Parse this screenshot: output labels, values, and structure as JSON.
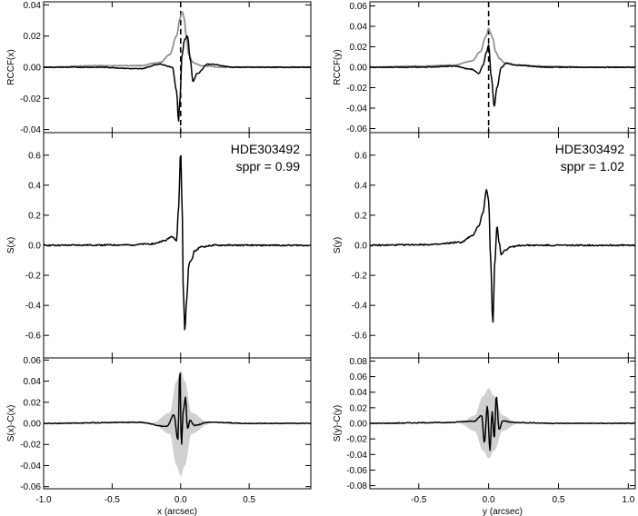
{
  "chart_data": [
    {
      "type": "line",
      "panel": "left-top",
      "ylabel": "RCCF(x)",
      "xlim": [
        -1.0,
        0.95
      ],
      "ylim": [
        -0.042,
        0.042
      ],
      "yticks": [
        0.04,
        0.02,
        0.0,
        -0.02,
        -0.04
      ],
      "ytick_labels": [
        "0.04",
        "0.02",
        "0.00",
        "-0.02",
        "-0.04"
      ],
      "xticks": [
        -1.0,
        -0.5,
        0.0,
        0.5
      ],
      "vline_dashed_x": 0.0,
      "series": [
        {
          "color": "#8c8c8c",
          "x": [
            -1.0,
            -0.6,
            -0.3,
            -0.15,
            -0.08,
            -0.03,
            -0.005,
            0.01,
            0.025,
            0.04,
            0.06,
            0.09,
            0.15,
            0.3,
            0.6,
            0.95
          ],
          "y": [
            0.0,
            0.001,
            0.001,
            0.003,
            0.008,
            0.02,
            0.031,
            0.036,
            0.032,
            0.02,
            0.008,
            0.003,
            0.001,
            0.0,
            0.0,
            0.0
          ]
        },
        {
          "color": "#000000",
          "x": [
            -1.0,
            -0.6,
            -0.3,
            -0.15,
            -0.06,
            -0.03,
            -0.015,
            -0.005,
            0.01,
            0.03,
            0.05,
            0.07,
            0.09,
            0.12,
            0.2,
            0.4,
            0.7,
            0.95
          ],
          "y": [
            0.0,
            0.0,
            -0.001,
            0.002,
            0.0,
            -0.015,
            -0.035,
            -0.02,
            0.008,
            0.018,
            0.02,
            0.005,
            -0.009,
            -0.004,
            0.002,
            0.0,
            0.0,
            0.0
          ]
        }
      ]
    },
    {
      "type": "line",
      "panel": "left-middle",
      "ylabel": "S(x)",
      "xlim": [
        -1.0,
        0.95
      ],
      "ylim": [
        -0.75,
        0.75
      ],
      "yticks": [
        0.6,
        0.4,
        0.2,
        0.0,
        -0.2,
        -0.4,
        -0.6
      ],
      "ytick_labels": [
        "0.6",
        "0.4",
        "0.2",
        "0.0",
        "-0.2",
        "-0.4",
        "-0.6"
      ],
      "xticks": [
        -1.0,
        -0.5,
        0.0,
        0.5
      ],
      "annotation": {
        "name": "HDE303492",
        "sppr": "sppr = 0.99"
      },
      "series": [
        {
          "color": "#000000",
          "x": [
            -1.0,
            -0.4,
            -0.2,
            -0.12,
            -0.06,
            -0.03,
            -0.015,
            0.0,
            0.01,
            0.02,
            0.03,
            0.045,
            0.06,
            0.08,
            0.1,
            0.15,
            0.25,
            0.5,
            0.95
          ],
          "y": [
            0.0,
            0.002,
            0.01,
            0.03,
            0.06,
            0.03,
            0.25,
            0.63,
            0.3,
            -0.3,
            -0.57,
            -0.35,
            -0.12,
            -0.1,
            -0.04,
            -0.01,
            0.0,
            0.0,
            0.0
          ]
        }
      ]
    },
    {
      "type": "line",
      "panel": "left-bottom",
      "ylabel": "S(x)-C(x)",
      "xlabel": "x (arcsec)",
      "xlim": [
        -1.0,
        0.95
      ],
      "ylim": [
        -0.062,
        0.062
      ],
      "yticks": [
        0.06,
        0.04,
        0.02,
        0.0,
        -0.02,
        -0.04,
        -0.06
      ],
      "ytick_labels": [
        "0.06",
        "0.04",
        "0.02",
        "0.00",
        "-0.02",
        "-0.04",
        "-0.06"
      ],
      "xticks": [
        -1.0,
        -0.5,
        0.0,
        0.5
      ],
      "xtick_labels": [
        "-1.0",
        "-0.5",
        "0.0",
        "0.5"
      ],
      "band_color": "#d0d0d0",
      "band": {
        "x": [
          -0.2,
          -0.08,
          -0.03,
          0.0,
          0.03,
          0.08,
          0.2
        ],
        "half_width": [
          0.001,
          0.01,
          0.04,
          0.05,
          0.04,
          0.01,
          0.001
        ]
      },
      "series": [
        {
          "color": "#000000",
          "x": [
            -1.0,
            -0.3,
            -0.1,
            -0.05,
            -0.02,
            -0.005,
            0.005,
            0.02,
            0.035,
            0.05,
            0.07,
            0.1,
            0.2,
            0.5,
            0.95
          ],
          "y": [
            0.0,
            0.001,
            -0.003,
            0.008,
            -0.015,
            0.052,
            -0.022,
            0.012,
            0.025,
            -0.005,
            0.003,
            -0.002,
            0.001,
            0.0,
            0.0
          ]
        }
      ]
    },
    {
      "type": "line",
      "panel": "right-top",
      "ylabel": "RCCF(y)",
      "xlim": [
        -0.85,
        1.05
      ],
      "ylim": [
        -0.064,
        0.064
      ],
      "yticks": [
        0.06,
        0.04,
        0.02,
        0.0,
        -0.02,
        -0.04,
        -0.06
      ],
      "ytick_labels": [
        "0.06",
        "0.04",
        "0.02",
        "0.00",
        "-0.02",
        "-0.04",
        "-0.06"
      ],
      "xticks": [
        -0.5,
        0.0,
        0.5,
        1.0
      ],
      "vline_dashed_x": 0.0,
      "series": [
        {
          "color": "#8c8c8c",
          "x": [
            -0.85,
            -0.5,
            -0.25,
            -0.12,
            -0.06,
            -0.02,
            0.0,
            0.015,
            0.03,
            0.05,
            0.08,
            0.12,
            0.2,
            0.4,
            0.7,
            1.05
          ],
          "y": [
            0.0,
            0.001,
            0.002,
            0.006,
            0.015,
            0.03,
            0.038,
            0.033,
            0.028,
            0.015,
            0.008,
            0.004,
            0.002,
            0.001,
            0.0,
            0.0
          ]
        },
        {
          "color": "#000000",
          "x": [
            -0.85,
            -0.5,
            -0.25,
            -0.12,
            -0.07,
            -0.04,
            -0.015,
            0.0,
            0.02,
            0.04,
            0.06,
            0.09,
            0.13,
            0.2,
            0.4,
            0.7,
            1.05
          ],
          "y": [
            0.0,
            0.0,
            0.001,
            -0.002,
            -0.006,
            0.002,
            0.015,
            0.022,
            -0.01,
            -0.038,
            -0.02,
            0.0,
            0.004,
            0.002,
            0.0,
            0.0,
            0.0
          ]
        }
      ]
    },
    {
      "type": "line",
      "panel": "right-middle",
      "ylabel": "S(y)",
      "xlim": [
        -0.85,
        1.05
      ],
      "ylim": [
        -0.75,
        0.75
      ],
      "yticks": [
        0.6,
        0.4,
        0.2,
        0.0,
        -0.2,
        -0.4,
        -0.6
      ],
      "ytick_labels": [
        "0.6",
        "0.4",
        "0.2",
        "0.0",
        "-0.2",
        "-0.4",
        "-0.6"
      ],
      "xticks": [
        -0.5,
        0.0,
        0.5,
        1.0
      ],
      "annotation": {
        "name": "HDE303492",
        "sppr": "sppr = 1.02"
      },
      "series": [
        {
          "color": "#000000",
          "x": [
            -0.85,
            -0.4,
            -0.2,
            -0.12,
            -0.07,
            -0.04,
            -0.015,
            0.0,
            0.015,
            0.03,
            0.045,
            0.06,
            0.075,
            0.09,
            0.12,
            0.16,
            0.25,
            0.5,
            1.05
          ],
          "y": [
            0.0,
            0.005,
            0.02,
            0.06,
            0.13,
            0.22,
            0.37,
            0.3,
            -0.1,
            -0.52,
            -0.1,
            0.13,
            0.02,
            -0.06,
            -0.03,
            -0.01,
            0.0,
            0.0,
            0.0
          ]
        }
      ]
    },
    {
      "type": "line",
      "panel": "right-bottom",
      "ylabel": "S(y)-C(y)",
      "xlabel": "y (arcsec)",
      "xlim": [
        -0.85,
        1.05
      ],
      "ylim": [
        -0.084,
        0.084
      ],
      "yticks": [
        0.08,
        0.06,
        0.04,
        0.02,
        0.0,
        -0.02,
        -0.04,
        -0.06,
        -0.08
      ],
      "ytick_labels": [
        "0.08",
        "0.06",
        "0.04",
        "0.02",
        "0.00",
        "-0.02",
        "-0.04",
        "-0.06",
        "-0.08"
      ],
      "xticks": [
        -0.5,
        0.0,
        0.5,
        1.0
      ],
      "xtick_labels": [
        "-0.5",
        "0.0",
        "0.5",
        "1.0"
      ],
      "band_color": "#d0d0d0",
      "band": {
        "x": [
          -0.2,
          -0.1,
          -0.04,
          0.0,
          0.04,
          0.1,
          0.2
        ],
        "half_width": [
          0.001,
          0.01,
          0.035,
          0.045,
          0.035,
          0.01,
          0.001
        ]
      },
      "series": [
        {
          "color": "#000000",
          "x": [
            -0.85,
            -0.3,
            -0.1,
            -0.05,
            -0.03,
            -0.01,
            0.01,
            0.025,
            0.04,
            0.055,
            0.075,
            0.1,
            0.2,
            0.5,
            1.05
          ],
          "y": [
            0.0,
            0.001,
            0.003,
            0.01,
            -0.025,
            0.022,
            -0.035,
            0.015,
            -0.02,
            0.035,
            -0.008,
            0.003,
            0.001,
            0.0,
            0.0
          ]
        }
      ]
    }
  ]
}
